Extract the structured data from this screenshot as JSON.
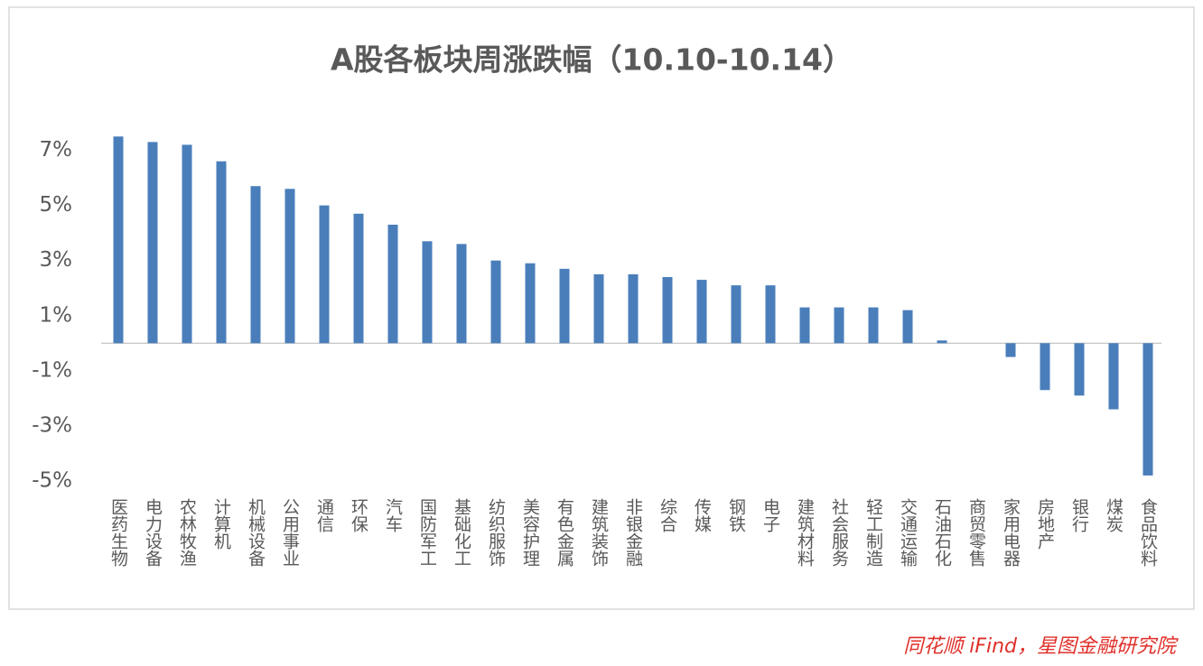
{
  "chart_data": {
    "type": "bar",
    "title": "A股各板块周涨跌幅（10.10-10.14）",
    "categories": [
      "医药生物",
      "电力设备",
      "农林牧渔",
      "计算机",
      "机械设备",
      "公用事业",
      "通信",
      "环保",
      "汽车",
      "国防军工",
      "基础化工",
      "纺织服饰",
      "美容护理",
      "有色金属",
      "建筑装饰",
      "非银金融",
      "综合",
      "传媒",
      "钢铁",
      "电子",
      "建筑材料",
      "社会服务",
      "轻工制造",
      "交通运输",
      "石油石化",
      "商贸零售",
      "家用电器",
      "房地产",
      "银行",
      "煤炭",
      "食品饮料"
    ],
    "values": [
      7.5,
      7.3,
      7.2,
      6.6,
      5.7,
      5.6,
      5.0,
      4.7,
      4.3,
      3.7,
      3.6,
      3.0,
      2.9,
      2.7,
      2.5,
      2.5,
      2.4,
      2.3,
      2.1,
      2.1,
      1.3,
      1.3,
      1.3,
      1.2,
      0.1,
      0,
      -0.5,
      -1.7,
      -1.9,
      -2.4,
      -4.8
    ],
    "color": "#4a7ebb",
    "ylim": [
      -5,
      8
    ],
    "yticks": [
      {
        "value": 7,
        "label": "7%"
      },
      {
        "value": 5,
        "label": "5%"
      },
      {
        "value": 3,
        "label": "3%"
      },
      {
        "value": 1,
        "label": "1%"
      },
      {
        "value": -1,
        "label": "-1%"
      },
      {
        "value": -3,
        "label": "-3%"
      },
      {
        "value": -5,
        "label": "-5%"
      }
    ],
    "grid": false,
    "source": "同花顺 iFind，星图金融研究院"
  }
}
